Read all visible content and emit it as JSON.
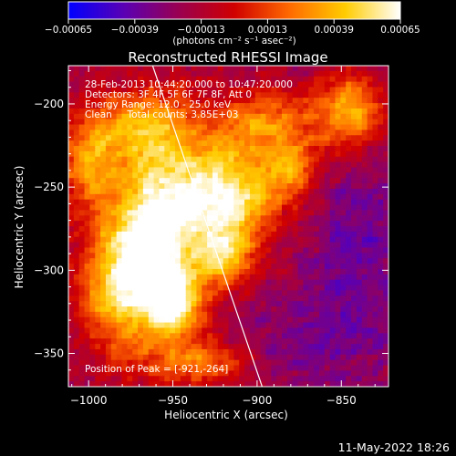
{
  "chart_data": {
    "type": "heatmap",
    "title": "Reconstructed RHESSI Image",
    "xlabel": "Heliocentric X (arcsec)",
    "ylabel": "Heliocentric Y (arcsec)",
    "xlim": [
      -1012,
      -822
    ],
    "ylim": [
      -370,
      -177
    ],
    "x_ticks": [
      -1000,
      -950,
      -900,
      -850
    ],
    "y_ticks": [
      -350,
      -300,
      -250,
      -200
    ],
    "x_tick_labels": [
      "−1000",
      "−950",
      "−900",
      "−850"
    ],
    "y_tick_labels": [
      "−350",
      "−300",
      "−250",
      "−200"
    ],
    "colorbar": {
      "range": [
        -0.00065,
        0.00065
      ],
      "ticks": [
        -0.00065,
        -0.00039,
        -0.00013,
        0.00013,
        0.00039,
        0.00065
      ],
      "tick_labels": [
        "−0.00065",
        "−0.00039",
        "−0.00013",
        "0.00013",
        "0.00039",
        "0.00065"
      ],
      "unit_label": "(photons cm⁻² s⁻¹ asec⁻²)",
      "colors": [
        "#0000ff",
        "#5a00b4",
        "#9a0050",
        "#d00000",
        "#ff6a00",
        "#ffcc00",
        "#ffffff"
      ]
    },
    "annotations": {
      "time": "28-Feb-2013 10:44:20.000 to 10:47:20.000",
      "detectors": "Detectors: 3F 4F 5F 6F 7F 8F, Att 0",
      "energy": "Energy Range: 12.0 - 25.0 keV",
      "method": "Clean     Total counts: 3.85E+03",
      "peak": "Position of Peak = [-921,-264]"
    },
    "peak_position": [
      -921,
      -264
    ],
    "limb_line": [
      [
        -962,
        -177
      ],
      [
        -897,
        -370
      ]
    ],
    "sources": [
      {
        "x": -920,
        "y": -255,
        "sx": 22,
        "sy": 20,
        "amp": 1.0
      },
      {
        "x": -960,
        "y": -275,
        "sx": 18,
        "sy": 30,
        "amp": 0.9
      },
      {
        "x": -980,
        "y": -310,
        "sx": 18,
        "sy": 28,
        "amp": 0.8
      },
      {
        "x": -948,
        "y": -320,
        "sx": 12,
        "sy": 14,
        "amp": 0.85
      },
      {
        "x": -920,
        "y": -292,
        "sx": 12,
        "sy": 12,
        "amp": 0.7
      },
      {
        "x": -965,
        "y": -215,
        "sx": 22,
        "sy": 18,
        "amp": 0.65
      },
      {
        "x": -895,
        "y": -212,
        "sx": 22,
        "sy": 14,
        "amp": 0.55
      },
      {
        "x": -845,
        "y": -205,
        "sx": 14,
        "sy": 16,
        "amp": 0.7
      },
      {
        "x": -1000,
        "y": -235,
        "sx": 12,
        "sy": 20,
        "amp": 0.55
      },
      {
        "x": -935,
        "y": -355,
        "sx": 22,
        "sy": 10,
        "amp": 0.5
      },
      {
        "x": -880,
        "y": -240,
        "sx": 12,
        "sy": 12,
        "amp": 0.45
      }
    ],
    "cool_regions": [
      {
        "x": -840,
        "y": -290,
        "sx": 20,
        "sy": 45,
        "amp": 0.7
      },
      {
        "x": -875,
        "y": -345,
        "sx": 25,
        "sy": 18,
        "amp": 0.5
      }
    ]
  },
  "footer": {
    "timestamp": "11-May-2022 18:26"
  }
}
